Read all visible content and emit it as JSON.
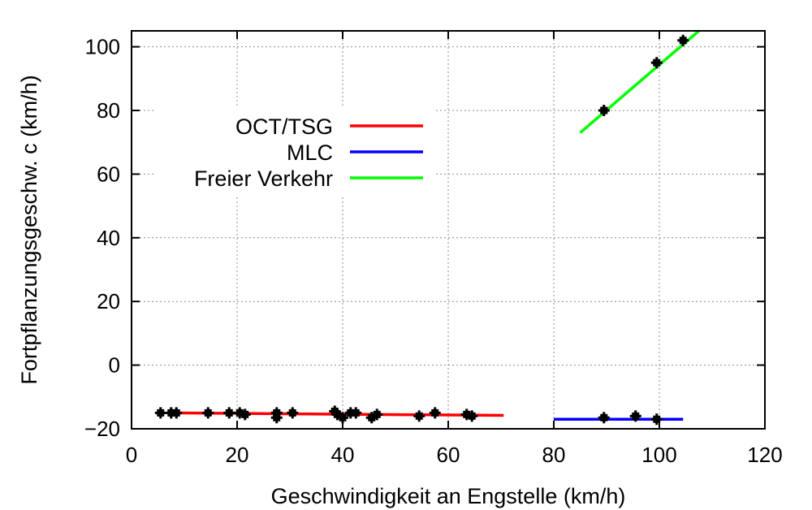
{
  "chart_data": {
    "type": "scatter",
    "xlabel": "Geschwindigkeit an Engstelle (km/h)",
    "ylabel": "Fortpflanzungsgeschw. c (km/h)",
    "xlim": [
      0,
      120
    ],
    "ylim": [
      -20,
      105
    ],
    "xticks": [
      {
        "value": 0,
        "label": "0"
      },
      {
        "value": 20,
        "label": "20"
      },
      {
        "value": 40,
        "label": "40"
      },
      {
        "value": 60,
        "label": "60"
      },
      {
        "value": 80,
        "label": "80"
      },
      {
        "value": 100,
        "label": "100"
      },
      {
        "value": 120,
        "label": "120"
      }
    ],
    "yticks": [
      {
        "value": -20,
        "label": "−20"
      },
      {
        "value": 0,
        "label": "0"
      },
      {
        "value": 20,
        "label": "20"
      },
      {
        "value": 40,
        "label": "40"
      },
      {
        "value": 60,
        "label": "60"
      },
      {
        "value": 80,
        "label": "80"
      },
      {
        "value": 100,
        "label": "100"
      }
    ],
    "grid": true,
    "legend_position": "top-left",
    "marker_color": "#000000",
    "points": [
      {
        "x": 5.5,
        "y": -15
      },
      {
        "x": 7.5,
        "y": -15
      },
      {
        "x": 8.5,
        "y": -15
      },
      {
        "x": 14.5,
        "y": -15
      },
      {
        "x": 18.5,
        "y": -15
      },
      {
        "x": 20.5,
        "y": -15
      },
      {
        "x": 21.5,
        "y": -15.5
      },
      {
        "x": 27.5,
        "y": -15
      },
      {
        "x": 27.5,
        "y": -16.5
      },
      {
        "x": 30.5,
        "y": -15
      },
      {
        "x": 38.5,
        "y": -14.5
      },
      {
        "x": 39,
        "y": -15.5
      },
      {
        "x": 40,
        "y": -16.5
      },
      {
        "x": 41.5,
        "y": -15
      },
      {
        "x": 42.5,
        "y": -15
      },
      {
        "x": 45.5,
        "y": -16.5
      },
      {
        "x": 46.5,
        "y": -15.5
      },
      {
        "x": 54.5,
        "y": -16
      },
      {
        "x": 57.5,
        "y": -15
      },
      {
        "x": 63.5,
        "y": -15.5
      },
      {
        "x": 64.5,
        "y": -16
      },
      {
        "x": 89.5,
        "y": -16.5
      },
      {
        "x": 95.5,
        "y": -16
      },
      {
        "x": 99.5,
        "y": -17
      },
      {
        "x": 89.5,
        "y": 80
      },
      {
        "x": 99.5,
        "y": 95
      },
      {
        "x": 104.5,
        "y": 102
      }
    ],
    "series": [
      {
        "name": "OCT/TSG",
        "color": "#ff0000",
        "x": [
          7,
          70.5
        ],
        "y": [
          -15,
          -15.8
        ]
      },
      {
        "name": "MLC",
        "color": "#0000ff",
        "x": [
          80,
          104.5
        ],
        "y": [
          -17,
          -17
        ]
      },
      {
        "name": "Freier Verkehr",
        "color": "#00ff00",
        "x": [
          85,
          107.5
        ],
        "y": [
          73,
          105
        ]
      }
    ]
  }
}
